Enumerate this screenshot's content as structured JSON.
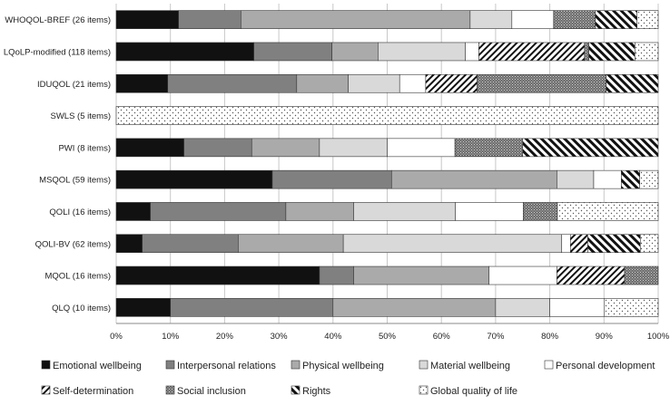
{
  "chart_data": {
    "type": "bar",
    "orientation": "horizontal",
    "stacked": "percent",
    "categories": [
      "WHOQOL-BREF (26 items)",
      "LQoLP-modified (118 items)",
      "IDUQOL (21 items)",
      "SWLS (5 items)",
      "PWI (8 items)",
      "MSQOL (59 items)",
      "QOLI (16 items)",
      "QOLI-BV (62 items)",
      "MQOL (16 items)",
      "QLQ (10 items)"
    ],
    "series": [
      {
        "name": "Emotional wellbeing",
        "pattern": "solid-black",
        "color": "#111111",
        "values": [
          11.5,
          25.4,
          9.5,
          0,
          12.5,
          28.8,
          6.3,
          4.8,
          37.5,
          10
        ]
      },
      {
        "name": "Interpersonal relations",
        "pattern": "solid-dark-gray",
        "color": "#808080",
        "values": [
          11.5,
          14.4,
          23.8,
          0,
          12.5,
          22.0,
          25.0,
          17.7,
          6.3,
          30
        ]
      },
      {
        "name": "Physical wellbeing",
        "pattern": "solid-mid-gray",
        "color": "#aaaaaa",
        "values": [
          42.3,
          8.5,
          9.5,
          0,
          12.5,
          30.5,
          12.5,
          19.4,
          25.0,
          30
        ]
      },
      {
        "name": "Material wellbeing",
        "pattern": "solid-light-gray",
        "color": "#d9d9d9",
        "values": [
          7.7,
          16.1,
          9.5,
          0,
          12.5,
          6.8,
          18.8,
          40.3,
          0,
          10
        ]
      },
      {
        "name": "Personal development",
        "pattern": "white",
        "color": "#ffffff",
        "values": [
          7.7,
          2.5,
          4.8,
          0,
          12.5,
          5.1,
          12.5,
          1.6,
          12.5,
          10
        ]
      },
      {
        "name": "Self-determination",
        "pattern": "dense-diagonal-stripes",
        "color": "#111111",
        "values": [
          0,
          19.5,
          9.5,
          0,
          0,
          0,
          0,
          3.2,
          12.5,
          0
        ]
      },
      {
        "name": "Social inclusion",
        "pattern": "dark-dotted",
        "color": "#777777",
        "values": [
          7.7,
          0.8,
          23.8,
          0,
          12.5,
          0,
          6.3,
          0,
          6.2,
          0
        ]
      },
      {
        "name": "Rights",
        "pattern": "bold-diagonal-stripes",
        "color": "#111111",
        "values": [
          7.7,
          8.5,
          9.6,
          0,
          25.0,
          3.4,
          0,
          9.7,
          0,
          0
        ]
      },
      {
        "name": "Global quality of life",
        "pattern": "light-dotted",
        "color": "#ffffff",
        "values": [
          3.9,
          4.3,
          0,
          100,
          0,
          3.4,
          18.6,
          3.3,
          0,
          10
        ]
      }
    ],
    "x_ticks": [
      "0%",
      "10%",
      "20%",
      "30%",
      "40%",
      "50%",
      "60%",
      "70%",
      "80%",
      "90%",
      "100%"
    ],
    "xlim": [
      0,
      100
    ],
    "grid": true,
    "legend_position": "bottom"
  }
}
